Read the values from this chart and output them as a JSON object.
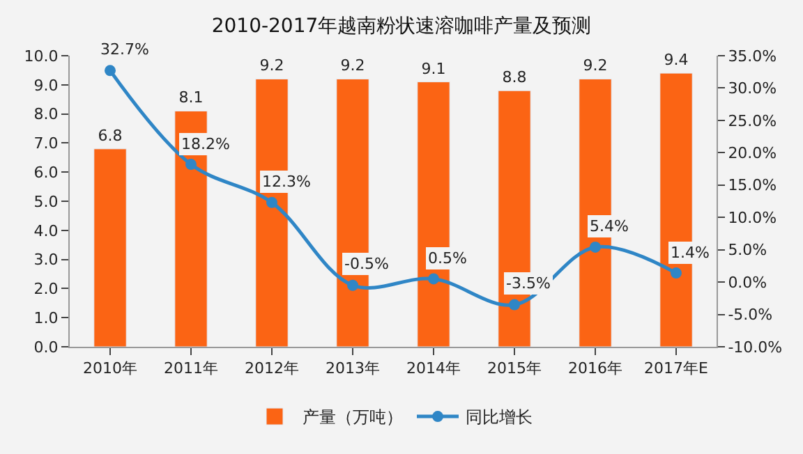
{
  "chart_data": {
    "type": "bar",
    "title": "2010-2017年越南粉状速溶咖啡产量及预测",
    "categories": [
      "2010年",
      "2011年",
      "2012年",
      "2013年",
      "2014年",
      "2015年",
      "2016年",
      "2017年E"
    ],
    "series": [
      {
        "name": "产量（万吨）",
        "color": "#fb6414",
        "values": [
          6.8,
          8.1,
          9.2,
          9.2,
          9.1,
          8.8,
          9.2,
          9.4
        ],
        "value_labels": [
          "6.8",
          "8.1",
          "9.2",
          "9.2",
          "9.1",
          "8.8",
          "9.2",
          "9.4"
        ]
      },
      {
        "name": "同比增长",
        "type": "line",
        "axis": "y2",
        "color": "#2f86c6",
        "marker": "circle",
        "values": [
          32.7,
          18.2,
          12.3,
          -0.5,
          0.5,
          -3.5,
          5.4,
          1.4
        ],
        "value_labels": [
          "32.7%",
          "18.2%",
          "12.3%",
          "-0.5%",
          "0.5%",
          "-3.5%",
          "5.4%",
          "1.4%"
        ]
      }
    ],
    "ylim": [
      0,
      10
    ],
    "yticks": [
      {
        "value": 0,
        "label": "0.0"
      },
      {
        "value": 1,
        "label": "1.0"
      },
      {
        "value": 2,
        "label": "2.0"
      },
      {
        "value": 3,
        "label": "3.0"
      },
      {
        "value": 4,
        "label": "4.0"
      },
      {
        "value": 5,
        "label": "5.0"
      },
      {
        "value": 6,
        "label": "6.0"
      },
      {
        "value": 7,
        "label": "7.0"
      },
      {
        "value": 8,
        "label": "8.0"
      },
      {
        "value": 9,
        "label": "9.0"
      },
      {
        "value": 10,
        "label": "10.0"
      }
    ],
    "y2lim": [
      -10,
      35
    ],
    "y2ticks": [
      {
        "value": -10,
        "label": "-10.0%"
      },
      {
        "value": -5,
        "label": "-5.0%"
      },
      {
        "value": 0,
        "label": "0.0%"
      },
      {
        "value": 5,
        "label": "5.0%"
      },
      {
        "value": 10,
        "label": "10.0%"
      },
      {
        "value": 15,
        "label": "15.0%"
      },
      {
        "value": 20,
        "label": "20.0%"
      },
      {
        "value": 25,
        "label": "25.0%"
      },
      {
        "value": 30,
        "label": "30.0%"
      },
      {
        "value": 35,
        "label": "35.0%"
      }
    ],
    "grid": false,
    "legend": "bottom"
  }
}
